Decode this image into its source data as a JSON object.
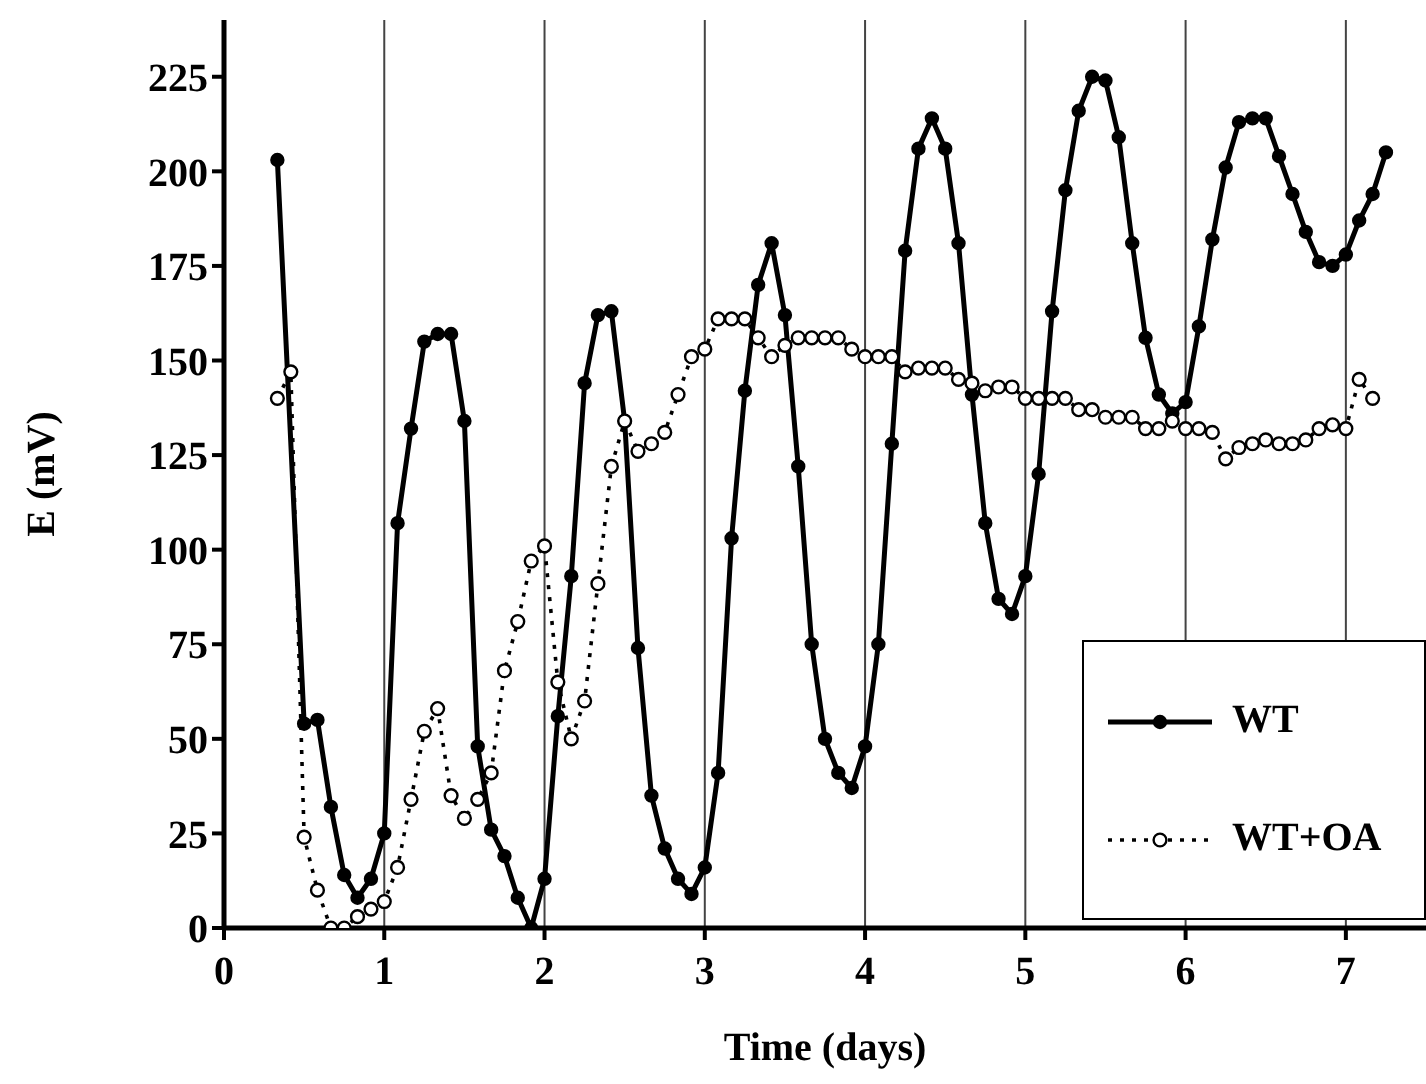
{
  "chart_data": {
    "type": "line",
    "xlabel": "Time (days)",
    "ylabel": "E (mV)",
    "xlim": [
      0,
      7.5
    ],
    "ylim": [
      0,
      240
    ],
    "xticks": [
      0,
      1,
      2,
      3,
      4,
      5,
      6,
      7
    ],
    "yticks": [
      0,
      25,
      50,
      75,
      100,
      125,
      150,
      175,
      200,
      225
    ],
    "grid": "x",
    "legend": "bottom right",
    "marker": "circle",
    "series": [
      {
        "name": "WT",
        "color": "#000000",
        "line_style": "solid",
        "x": [
          0.333,
          0.5,
          0.583,
          0.667,
          0.75,
          0.833,
          0.917,
          1,
          1.083,
          1.167,
          1.25,
          1.333,
          1.417,
          1.5,
          1.583,
          1.667,
          1.75,
          1.833,
          1.917,
          2,
          2.083,
          2.167,
          2.25,
          2.333,
          2.417,
          2.5,
          2.583,
          2.667,
          2.75,
          2.833,
          2.917,
          3,
          3.083,
          3.167,
          3.25,
          3.333,
          3.417,
          3.5,
          3.583,
          3.667,
          3.75,
          3.833,
          3.917,
          4,
          4.083,
          4.167,
          4.25,
          4.333,
          4.417,
          4.5,
          4.583,
          4.667,
          4.75,
          4.833,
          4.917,
          5,
          5.083,
          5.167,
          5.25,
          5.333,
          5.417,
          5.5,
          5.583,
          5.667,
          5.75,
          5.833,
          5.917,
          6,
          6.083,
          6.167,
          6.25,
          6.333,
          6.417,
          6.5,
          6.583,
          6.667,
          6.75,
          6.833,
          6.917,
          7,
          7.083,
          7.167,
          7.25
        ],
        "values": [
          203,
          54,
          55,
          32,
          14,
          8,
          13,
          25,
          107,
          132,
          155,
          157,
          157,
          134,
          48,
          26,
          19,
          8,
          0,
          13,
          56,
          93,
          144,
          162,
          163,
          134,
          74,
          35,
          21,
          13,
          9,
          16,
          41,
          103,
          142,
          170,
          181,
          162,
          122,
          75,
          50,
          41,
          37,
          48,
          75,
          128,
          179,
          206,
          214,
          206,
          181,
          141,
          107,
          87,
          83,
          93,
          120,
          163,
          195,
          216,
          225,
          224,
          209,
          181,
          156,
          141,
          136,
          139,
          159,
          182,
          201,
          213,
          214,
          214,
          204,
          194,
          184,
          176,
          175,
          178,
          187,
          194,
          205
        ]
      },
      {
        "name": "WT+OA",
        "color": "#000000",
        "line_style": "dotted",
        "x": [
          0.333,
          0.417,
          0.5,
          0.583,
          0.667,
          0.75,
          0.833,
          0.917,
          1,
          1.083,
          1.167,
          1.25,
          1.333,
          1.417,
          1.5,
          1.583,
          1.667,
          1.75,
          1.833,
          1.917,
          2,
          2.083,
          2.167,
          2.25,
          2.333,
          2.417,
          2.5,
          2.583,
          2.667,
          2.75,
          2.833,
          2.917,
          3,
          3.083,
          3.167,
          3.25,
          3.333,
          3.417,
          3.5,
          3.583,
          3.667,
          3.75,
          3.833,
          3.917,
          4,
          4.083,
          4.167,
          4.25,
          4.333,
          4.417,
          4.5,
          4.583,
          4.667,
          4.75,
          4.833,
          4.917,
          5,
          5.083,
          5.167,
          5.25,
          5.333,
          5.417,
          5.5,
          5.583,
          5.667,
          5.75,
          5.833,
          5.917,
          6,
          6.083,
          6.167,
          6.25,
          6.333,
          6.417,
          6.5,
          6.583,
          6.667,
          6.75,
          6.833,
          6.917,
          7,
          7.083,
          7.167
        ],
        "values": [
          140,
          147,
          24,
          10,
          0,
          0,
          3,
          5,
          7,
          16,
          34,
          52,
          58,
          35,
          29,
          34,
          41,
          68,
          81,
          97,
          101,
          65,
          50,
          60,
          91,
          122,
          134,
          126,
          128,
          131,
          141,
          151,
          153,
          161,
          161,
          161,
          156,
          151,
          154,
          156,
          156,
          156,
          156,
          153,
          151,
          151,
          151,
          147,
          148,
          148,
          148,
          145,
          144,
          142,
          143,
          143,
          140,
          140,
          140,
          140,
          137,
          137,
          135,
          135,
          135,
          132,
          132,
          134,
          132,
          132,
          131,
          124,
          127,
          128,
          129,
          128,
          128,
          129,
          132,
          133,
          132,
          145,
          140
        ]
      }
    ]
  }
}
